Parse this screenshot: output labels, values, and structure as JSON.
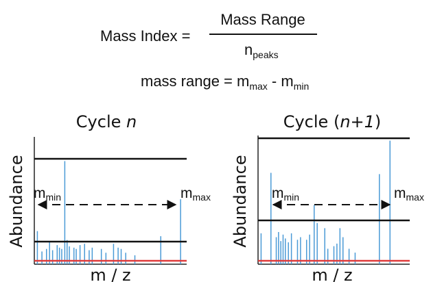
{
  "formula": {
    "lhs": "Mass Index =",
    "numerator": "Mass Range",
    "denominator_main": "n",
    "denominator_sub": "peaks",
    "line2_text": "mass range = m",
    "line2_sub_max": "max",
    "line2_minus": " - m",
    "line2_sub_min": "min"
  },
  "colors": {
    "axis": "#222222",
    "threshold": "#111111",
    "peak": "#4a9ad6",
    "baseline": "#e03a3a"
  },
  "panels": [
    {
      "title_prefix": "Cycle ",
      "title_var": "n",
      "title_suffix": "",
      "ylabel": "Abundance",
      "xlabel": "m / z",
      "label_min_main": "m",
      "label_min_sub": "min",
      "label_max_main": "m",
      "label_max_sub": "max",
      "upper_threshold": 0.8,
      "lower_threshold": 0.16,
      "peaks": [
        {
          "x": 0.02,
          "h": 0.26
        },
        {
          "x": 0.05,
          "h": 0.1
        },
        {
          "x": 0.08,
          "h": 0.12
        },
        {
          "x": 0.1,
          "h": 0.18
        },
        {
          "x": 0.12,
          "h": 0.11
        },
        {
          "x": 0.15,
          "h": 0.15
        },
        {
          "x": 0.165,
          "h": 0.13
        },
        {
          "x": 0.18,
          "h": 0.12
        },
        {
          "x": 0.2,
          "h": 0.81
        },
        {
          "x": 0.215,
          "h": 0.19
        },
        {
          "x": 0.23,
          "h": 0.14
        },
        {
          "x": 0.26,
          "h": 0.13
        },
        {
          "x": 0.275,
          "h": 0.12
        },
        {
          "x": 0.3,
          "h": 0.15
        },
        {
          "x": 0.33,
          "h": 0.16
        },
        {
          "x": 0.36,
          "h": 0.11
        },
        {
          "x": 0.38,
          "h": 0.13
        },
        {
          "x": 0.44,
          "h": 0.12
        },
        {
          "x": 0.47,
          "h": 0.09
        },
        {
          "x": 0.52,
          "h": 0.16
        },
        {
          "x": 0.55,
          "h": 0.13
        },
        {
          "x": 0.57,
          "h": 0.12
        },
        {
          "x": 0.6,
          "h": 0.09
        },
        {
          "x": 0.66,
          "h": 0.07
        },
        {
          "x": 0.83,
          "h": 0.22
        },
        {
          "x": 0.96,
          "h": 0.51
        }
      ]
    },
    {
      "title_prefix": "Cycle (",
      "title_var": "n+1",
      "title_suffix": ")",
      "ylabel": "Abundance",
      "xlabel": "m / z",
      "label_min_main": "m",
      "label_min_sub": "min",
      "label_max_main": "m",
      "label_max_sub": "max",
      "upper_threshold": 0.97,
      "lower_threshold": 0.32,
      "peaks": [
        {
          "x": 0.02,
          "h": 0.24
        },
        {
          "x": 0.085,
          "h": 0.71
        },
        {
          "x": 0.12,
          "h": 0.21
        },
        {
          "x": 0.135,
          "h": 0.25
        },
        {
          "x": 0.15,
          "h": 0.18
        },
        {
          "x": 0.165,
          "h": 0.23
        },
        {
          "x": 0.18,
          "h": 0.2
        },
        {
          "x": 0.2,
          "h": 0.17
        },
        {
          "x": 0.22,
          "h": 0.24
        },
        {
          "x": 0.26,
          "h": 0.19
        },
        {
          "x": 0.28,
          "h": 0.21
        },
        {
          "x": 0.32,
          "h": 0.19
        },
        {
          "x": 0.34,
          "h": 0.23
        },
        {
          "x": 0.37,
          "h": 0.46
        },
        {
          "x": 0.39,
          "h": 0.32
        },
        {
          "x": 0.44,
          "h": 0.28
        },
        {
          "x": 0.46,
          "h": 0.12
        },
        {
          "x": 0.5,
          "h": 0.14
        },
        {
          "x": 0.52,
          "h": 0.16
        },
        {
          "x": 0.54,
          "h": 0.28
        },
        {
          "x": 0.56,
          "h": 0.21
        },
        {
          "x": 0.6,
          "h": 0.12
        },
        {
          "x": 0.64,
          "h": 0.09
        },
        {
          "x": 0.8,
          "h": 0.7
        },
        {
          "x": 0.87,
          "h": 0.96
        }
      ]
    }
  ]
}
